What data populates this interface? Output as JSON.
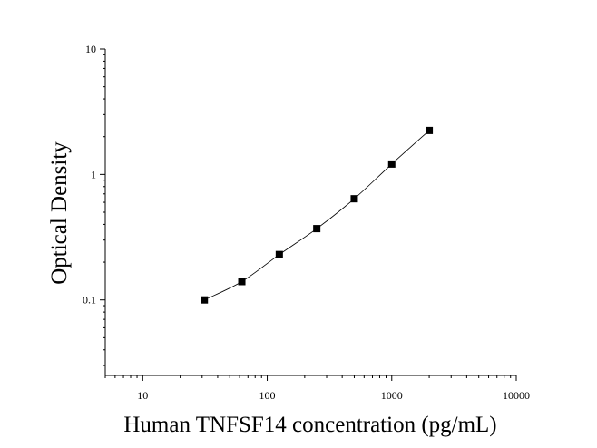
{
  "chart_data": {
    "type": "scatter",
    "x_label": "Human TNFSF14 concentration (pg/mL)",
    "y_label": "Optical Density",
    "x": [
      31.25,
      62.5,
      125,
      250,
      500,
      1000,
      2000
    ],
    "values": [
      0.1,
      0.14,
      0.23,
      0.37,
      0.64,
      1.21,
      2.24
    ],
    "color": "#000000",
    "xlim": [
      5,
      10000
    ],
    "ylim": [
      0.025,
      10
    ],
    "xticks": [
      10,
      100,
      1000,
      10000
    ],
    "yticks": [
      0.1,
      1,
      10
    ],
    "log_x": true,
    "log_y": true,
    "fit_curve": true
  }
}
